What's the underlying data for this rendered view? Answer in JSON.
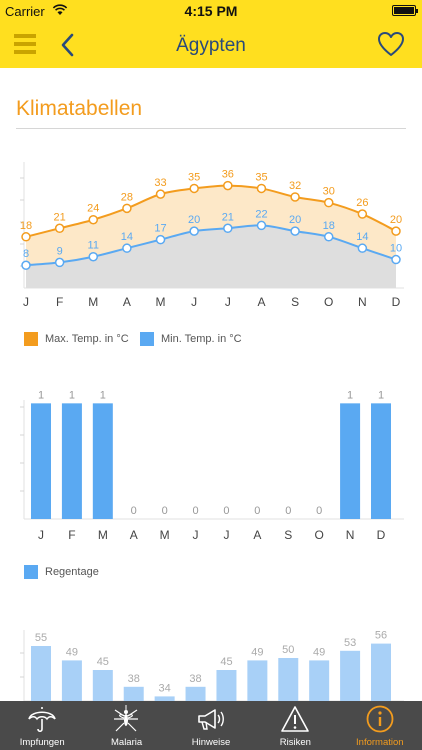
{
  "status_bar": {
    "carrier": "Carrier",
    "time": "4:15 PM"
  },
  "nav": {
    "title": "Ägypten"
  },
  "section": {
    "title": "Klimatabellen"
  },
  "months": [
    "J",
    "F",
    "M",
    "A",
    "M",
    "J",
    "J",
    "A",
    "S",
    "O",
    "N",
    "D"
  ],
  "legend": {
    "max_temp": "Max. Temp. in °C",
    "min_temp": "Min. Temp. in °C",
    "rain_days": "Regentage"
  },
  "colors": {
    "accent": "#f39c1e",
    "brand_yellow": "#ffdf1f",
    "max_temp": "#f39c1e",
    "min_temp": "#5aa9f2",
    "rain_bars": "#5aa9f2",
    "humidity_bars": "#a8d0f7",
    "tab_bar": "#4a4a4a"
  },
  "chart_data": [
    {
      "type": "area",
      "categories": [
        "J",
        "F",
        "M",
        "A",
        "M",
        "J",
        "J",
        "A",
        "S",
        "O",
        "N",
        "D"
      ],
      "series": [
        {
          "name": "Max. Temp. in °C",
          "values": [
            18,
            21,
            24,
            28,
            33,
            35,
            36,
            35,
            32,
            30,
            26,
            20
          ]
        },
        {
          "name": "Min. Temp. in °C",
          "values": [
            8,
            9,
            11,
            14,
            17,
            20,
            21,
            22,
            20,
            18,
            14,
            10
          ]
        }
      ],
      "ylim": [
        0,
        45
      ],
      "legend_position": "bottom-left",
      "grid": false
    },
    {
      "type": "bar",
      "categories": [
        "J",
        "F",
        "M",
        "A",
        "M",
        "J",
        "J",
        "A",
        "S",
        "O",
        "N",
        "D"
      ],
      "series": [
        {
          "name": "Regentage",
          "values": [
            1,
            1,
            1,
            0,
            0,
            0,
            0,
            0,
            0,
            0,
            1,
            1
          ]
        }
      ],
      "ylim": [
        0,
        1.15
      ],
      "legend_position": "bottom-left",
      "grid": false
    },
    {
      "type": "bar",
      "categories": [
        "J",
        "F",
        "M",
        "A",
        "M",
        "J",
        "J",
        "A",
        "S",
        "O",
        "N",
        "D"
      ],
      "series": [
        {
          "values": [
            55,
            49,
            45,
            38,
            34,
            38,
            45,
            49,
            50,
            49,
            53,
            56
          ]
        }
      ],
      "ylim": [
        0,
        100
      ],
      "grid": false
    }
  ],
  "tabs": [
    {
      "label": "Impfungen",
      "icon": "umbrella-icon",
      "active": false
    },
    {
      "label": "Malaria",
      "icon": "mosquito-icon",
      "active": false
    },
    {
      "label": "Hinweise",
      "icon": "megaphone-icon",
      "active": false
    },
    {
      "label": "Risiken",
      "icon": "warning-icon",
      "active": false
    },
    {
      "label": "Information",
      "icon": "info-icon",
      "active": true
    }
  ]
}
